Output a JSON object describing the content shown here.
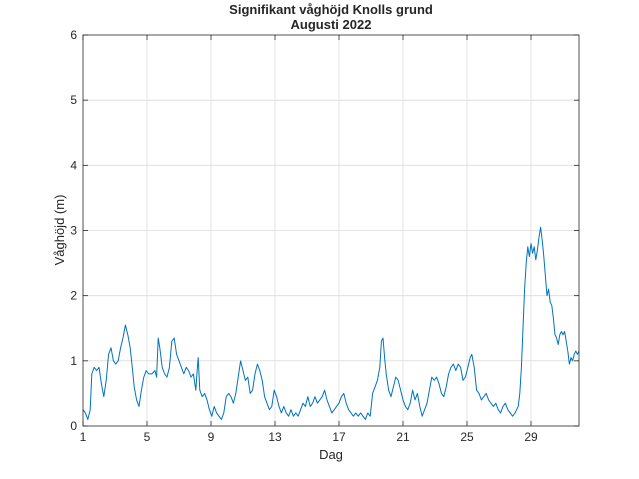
{
  "chart_data": {
    "type": "line",
    "title": "Signifikant våghöjd Knolls grund",
    "subtitle": "Augusti 2022",
    "xlabel": "Dag",
    "ylabel": "Våghöjd (m)",
    "xlim": [
      1,
      32
    ],
    "ylim": [
      0,
      6
    ],
    "xticks": [
      1,
      5,
      9,
      13,
      17,
      21,
      25,
      29
    ],
    "yticks": [
      0,
      1,
      2,
      3,
      4,
      5,
      6
    ],
    "grid": true,
    "series": [
      {
        "name": "Signifikant våghöjd",
        "color": "#0072BD",
        "points": [
          [
            1.0,
            0.25
          ],
          [
            1.15,
            0.2
          ],
          [
            1.3,
            0.1
          ],
          [
            1.45,
            0.25
          ],
          [
            1.55,
            0.8
          ],
          [
            1.7,
            0.9
          ],
          [
            1.85,
            0.85
          ],
          [
            2.0,
            0.9
          ],
          [
            2.15,
            0.65
          ],
          [
            2.3,
            0.45
          ],
          [
            2.45,
            0.7
          ],
          [
            2.6,
            1.1
          ],
          [
            2.75,
            1.2
          ],
          [
            2.9,
            1.0
          ],
          [
            3.05,
            0.95
          ],
          [
            3.2,
            1.0
          ],
          [
            3.35,
            1.2
          ],
          [
            3.5,
            1.35
          ],
          [
            3.65,
            1.55
          ],
          [
            3.8,
            1.4
          ],
          [
            3.95,
            1.2
          ],
          [
            4.1,
            0.85
          ],
          [
            4.2,
            0.6
          ],
          [
            4.35,
            0.4
          ],
          [
            4.5,
            0.3
          ],
          [
            4.65,
            0.55
          ],
          [
            4.8,
            0.75
          ],
          [
            4.95,
            0.85
          ],
          [
            5.1,
            0.8
          ],
          [
            5.3,
            0.8
          ],
          [
            5.5,
            0.85
          ],
          [
            5.6,
            0.75
          ],
          [
            5.7,
            1.35
          ],
          [
            5.8,
            1.2
          ],
          [
            5.95,
            0.9
          ],
          [
            6.1,
            0.8
          ],
          [
            6.25,
            0.75
          ],
          [
            6.4,
            0.9
          ],
          [
            6.55,
            1.3
          ],
          [
            6.7,
            1.35
          ],
          [
            6.85,
            1.1
          ],
          [
            7.0,
            1.0
          ],
          [
            7.15,
            0.9
          ],
          [
            7.3,
            0.8
          ],
          [
            7.45,
            0.9
          ],
          [
            7.6,
            0.85
          ],
          [
            7.75,
            0.75
          ],
          [
            7.9,
            0.8
          ],
          [
            8.05,
            0.55
          ],
          [
            8.15,
            0.9
          ],
          [
            8.2,
            1.05
          ],
          [
            8.3,
            0.55
          ],
          [
            8.45,
            0.45
          ],
          [
            8.6,
            0.5
          ],
          [
            8.75,
            0.4
          ],
          [
            8.9,
            0.25
          ],
          [
            9.05,
            0.15
          ],
          [
            9.2,
            0.3
          ],
          [
            9.35,
            0.2
          ],
          [
            9.5,
            0.15
          ],
          [
            9.65,
            0.1
          ],
          [
            9.8,
            0.2
          ],
          [
            9.95,
            0.45
          ],
          [
            10.1,
            0.5
          ],
          [
            10.25,
            0.45
          ],
          [
            10.4,
            0.35
          ],
          [
            10.55,
            0.5
          ],
          [
            10.7,
            0.75
          ],
          [
            10.85,
            1.0
          ],
          [
            11.0,
            0.85
          ],
          [
            11.15,
            0.7
          ],
          [
            11.3,
            0.75
          ],
          [
            11.45,
            0.5
          ],
          [
            11.6,
            0.55
          ],
          [
            11.75,
            0.8
          ],
          [
            11.9,
            0.95
          ],
          [
            12.05,
            0.85
          ],
          [
            12.2,
            0.7
          ],
          [
            12.35,
            0.45
          ],
          [
            12.5,
            0.35
          ],
          [
            12.65,
            0.25
          ],
          [
            12.8,
            0.3
          ],
          [
            12.95,
            0.55
          ],
          [
            13.1,
            0.45
          ],
          [
            13.25,
            0.3
          ],
          [
            13.4,
            0.2
          ],
          [
            13.55,
            0.3
          ],
          [
            13.7,
            0.2
          ],
          [
            13.85,
            0.15
          ],
          [
            14.0,
            0.25
          ],
          [
            14.15,
            0.15
          ],
          [
            14.3,
            0.2
          ],
          [
            14.45,
            0.15
          ],
          [
            14.6,
            0.25
          ],
          [
            14.75,
            0.35
          ],
          [
            14.9,
            0.3
          ],
          [
            15.05,
            0.45
          ],
          [
            15.2,
            0.3
          ],
          [
            15.35,
            0.35
          ],
          [
            15.5,
            0.45
          ],
          [
            15.65,
            0.35
          ],
          [
            15.8,
            0.4
          ],
          [
            15.95,
            0.45
          ],
          [
            16.1,
            0.55
          ],
          [
            16.25,
            0.4
          ],
          [
            16.4,
            0.3
          ],
          [
            16.55,
            0.2
          ],
          [
            16.7,
            0.25
          ],
          [
            16.85,
            0.3
          ],
          [
            17.0,
            0.35
          ],
          [
            17.15,
            0.45
          ],
          [
            17.3,
            0.5
          ],
          [
            17.45,
            0.35
          ],
          [
            17.6,
            0.25
          ],
          [
            17.75,
            0.2
          ],
          [
            17.9,
            0.15
          ],
          [
            18.05,
            0.2
          ],
          [
            18.2,
            0.15
          ],
          [
            18.35,
            0.2
          ],
          [
            18.5,
            0.15
          ],
          [
            18.65,
            0.1
          ],
          [
            18.8,
            0.2
          ],
          [
            18.95,
            0.15
          ],
          [
            19.1,
            0.5
          ],
          [
            19.25,
            0.6
          ],
          [
            19.4,
            0.7
          ],
          [
            19.55,
            0.9
          ],
          [
            19.65,
            1.3
          ],
          [
            19.75,
            1.35
          ],
          [
            19.85,
            1.05
          ],
          [
            19.95,
            0.8
          ],
          [
            20.1,
            0.55
          ],
          [
            20.25,
            0.45
          ],
          [
            20.4,
            0.6
          ],
          [
            20.55,
            0.75
          ],
          [
            20.7,
            0.7
          ],
          [
            20.85,
            0.55
          ],
          [
            21.0,
            0.4
          ],
          [
            21.15,
            0.3
          ],
          [
            21.3,
            0.25
          ],
          [
            21.45,
            0.35
          ],
          [
            21.6,
            0.55
          ],
          [
            21.75,
            0.4
          ],
          [
            21.9,
            0.5
          ],
          [
            22.05,
            0.3
          ],
          [
            22.2,
            0.15
          ],
          [
            22.35,
            0.25
          ],
          [
            22.5,
            0.35
          ],
          [
            22.65,
            0.55
          ],
          [
            22.8,
            0.75
          ],
          [
            22.95,
            0.7
          ],
          [
            23.1,
            0.75
          ],
          [
            23.25,
            0.65
          ],
          [
            23.4,
            0.5
          ],
          [
            23.55,
            0.45
          ],
          [
            23.7,
            0.6
          ],
          [
            23.85,
            0.8
          ],
          [
            24.0,
            0.9
          ],
          [
            24.15,
            0.95
          ],
          [
            24.3,
            0.85
          ],
          [
            24.45,
            0.95
          ],
          [
            24.6,
            0.9
          ],
          [
            24.75,
            0.7
          ],
          [
            24.9,
            0.75
          ],
          [
            25.05,
            0.9
          ],
          [
            25.2,
            1.05
          ],
          [
            25.3,
            1.1
          ],
          [
            25.45,
            0.9
          ],
          [
            25.6,
            0.55
          ],
          [
            25.75,
            0.5
          ],
          [
            25.9,
            0.4
          ],
          [
            26.05,
            0.45
          ],
          [
            26.2,
            0.5
          ],
          [
            26.35,
            0.4
          ],
          [
            26.5,
            0.35
          ],
          [
            26.65,
            0.3
          ],
          [
            26.8,
            0.35
          ],
          [
            26.95,
            0.25
          ],
          [
            27.1,
            0.2
          ],
          [
            27.25,
            0.3
          ],
          [
            27.4,
            0.35
          ],
          [
            27.55,
            0.25
          ],
          [
            27.7,
            0.2
          ],
          [
            27.85,
            0.15
          ],
          [
            28.0,
            0.2
          ],
          [
            28.1,
            0.25
          ],
          [
            28.2,
            0.3
          ],
          [
            28.3,
            0.5
          ],
          [
            28.4,
            0.9
          ],
          [
            28.5,
            1.5
          ],
          [
            28.6,
            2.1
          ],
          [
            28.7,
            2.5
          ],
          [
            28.8,
            2.75
          ],
          [
            28.9,
            2.6
          ],
          [
            29.0,
            2.8
          ],
          [
            29.1,
            2.65
          ],
          [
            29.2,
            2.75
          ],
          [
            29.3,
            2.55
          ],
          [
            29.4,
            2.7
          ],
          [
            29.5,
            2.9
          ],
          [
            29.6,
            3.05
          ],
          [
            29.7,
            2.85
          ],
          [
            29.8,
            2.6
          ],
          [
            29.9,
            2.3
          ],
          [
            30.0,
            2.0
          ],
          [
            30.1,
            2.1
          ],
          [
            30.2,
            1.9
          ],
          [
            30.3,
            1.85
          ],
          [
            30.4,
            1.65
          ],
          [
            30.5,
            1.4
          ],
          [
            30.6,
            1.35
          ],
          [
            30.7,
            1.25
          ],
          [
            30.8,
            1.4
          ],
          [
            30.9,
            1.45
          ],
          [
            31.0,
            1.4
          ],
          [
            31.1,
            1.45
          ],
          [
            31.2,
            1.3
          ],
          [
            31.3,
            1.15
          ],
          [
            31.4,
            0.95
          ],
          [
            31.5,
            1.05
          ],
          [
            31.6,
            1.0
          ],
          [
            31.7,
            1.1
          ],
          [
            31.8,
            1.15
          ],
          [
            31.9,
            1.1
          ],
          [
            32.0,
            1.15
          ]
        ]
      }
    ]
  }
}
